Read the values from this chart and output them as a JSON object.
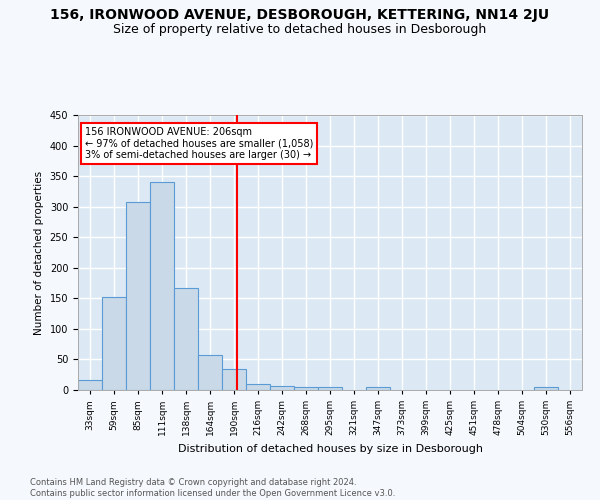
{
  "title": "156, IRONWOOD AVENUE, DESBOROUGH, KETTERING, NN14 2JU",
  "subtitle": "Size of property relative to detached houses in Desborough",
  "xlabel": "Distribution of detached houses by size in Desborough",
  "ylabel": "Number of detached properties",
  "footer_line1": "Contains HM Land Registry data © Crown copyright and database right 2024.",
  "footer_line2": "Contains public sector information licensed under the Open Government Licence v3.0.",
  "bin_labels": [
    "33sqm",
    "59sqm",
    "85sqm",
    "111sqm",
    "138sqm",
    "164sqm",
    "190sqm",
    "216sqm",
    "242sqm",
    "268sqm",
    "295sqm",
    "321sqm",
    "347sqm",
    "373sqm",
    "399sqm",
    "425sqm",
    "451sqm",
    "478sqm",
    "504sqm",
    "530sqm",
    "556sqm"
  ],
  "bar_heights": [
    17,
    153,
    307,
    340,
    167,
    58,
    35,
    10,
    7,
    5,
    5,
    0,
    5,
    0,
    0,
    0,
    0,
    0,
    0,
    5,
    0
  ],
  "bar_color": "#c9d9e8",
  "bar_edge_color": "#5b9bd5",
  "annotation_title": "156 IRONWOOD AVENUE: 206sqm",
  "annotation_line1": "← 97% of detached houses are smaller (1,058)",
  "annotation_line2": "3% of semi-detached houses are larger (30) →",
  "ylim": [
    0,
    450
  ],
  "background_color": "#dce9f5",
  "grid_color": "#ffffff",
  "fig_background": "#f5f8fc",
  "title_fontsize": 10,
  "subtitle_fontsize": 9
}
